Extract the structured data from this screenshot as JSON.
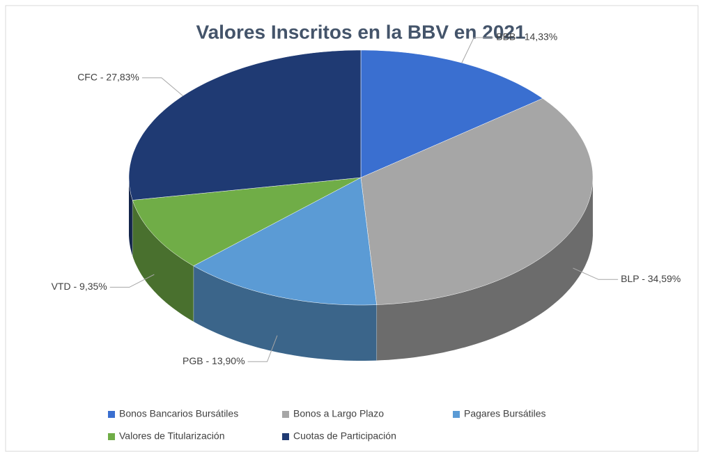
{
  "chart_data": {
    "type": "pie3d",
    "title": "Valores Inscritos en la BBV en 2021",
    "categories": [
      "Bonos Bancarios Bursátiles",
      "Bonos a Largo Plazo",
      "Pagares Bursátiles",
      "Valores de Titularización",
      "Cuotas de Participación"
    ],
    "values": [
      14.33,
      34.59,
      13.9,
      9.35,
      27.83
    ],
    "value_labels": [
      "BBB - 14,33%",
      "BLP - 34,59%",
      "PGB - 13,90%",
      "VTD - 9,35%",
      "CFC - 27,83%"
    ],
    "colors": [
      "#3a6fd0",
      "#a6a6a6",
      "#5b9bd5",
      "#70ad47",
      "#1f3a73"
    ]
  }
}
